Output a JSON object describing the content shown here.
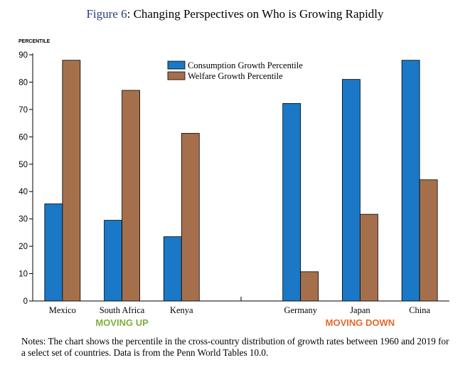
{
  "title_prefix": "Figure 6",
  "title_rest": ": Changing Perspectives on Who is Growing Rapidly",
  "notes": "Notes: The chart shows the percentile in the cross-country distribution of growth rates between 1960 and 2019 for a select set of countries. Data is from the Penn World Tables 10.0.",
  "colors": {
    "consumption": "#1a78c6",
    "welfare": "#a66f4c",
    "moving_up": "#7fb03a",
    "moving_down": "#e06a2e"
  },
  "chart_data": {
    "type": "bar",
    "ylabel": "PERCENTILE",
    "ylim": [
      0,
      90
    ],
    "yticks": [
      0,
      10,
      20,
      30,
      40,
      50,
      60,
      70,
      80,
      90
    ],
    "categories": [
      "Mexico",
      "South Africa",
      "Kenya",
      "",
      "Germany",
      "Japan",
      "China"
    ],
    "series": [
      {
        "name": "Consumption Growth Percentile",
        "values": [
          35.5,
          29.5,
          23.5,
          null,
          72.2,
          81.0,
          88.0
        ]
      },
      {
        "name": "Welfare Growth Percentile",
        "values": [
          88.0,
          77.0,
          61.3,
          null,
          10.7,
          31.7,
          44.3
        ]
      }
    ],
    "legend_position": "top-center",
    "group_labels": [
      {
        "label": "MOVING UP",
        "categories": [
          "Mexico",
          "South Africa",
          "Kenya"
        ]
      },
      {
        "label": "MOVING DOWN",
        "categories": [
          "Germany",
          "Japan",
          "China"
        ]
      }
    ],
    "grid": false
  }
}
